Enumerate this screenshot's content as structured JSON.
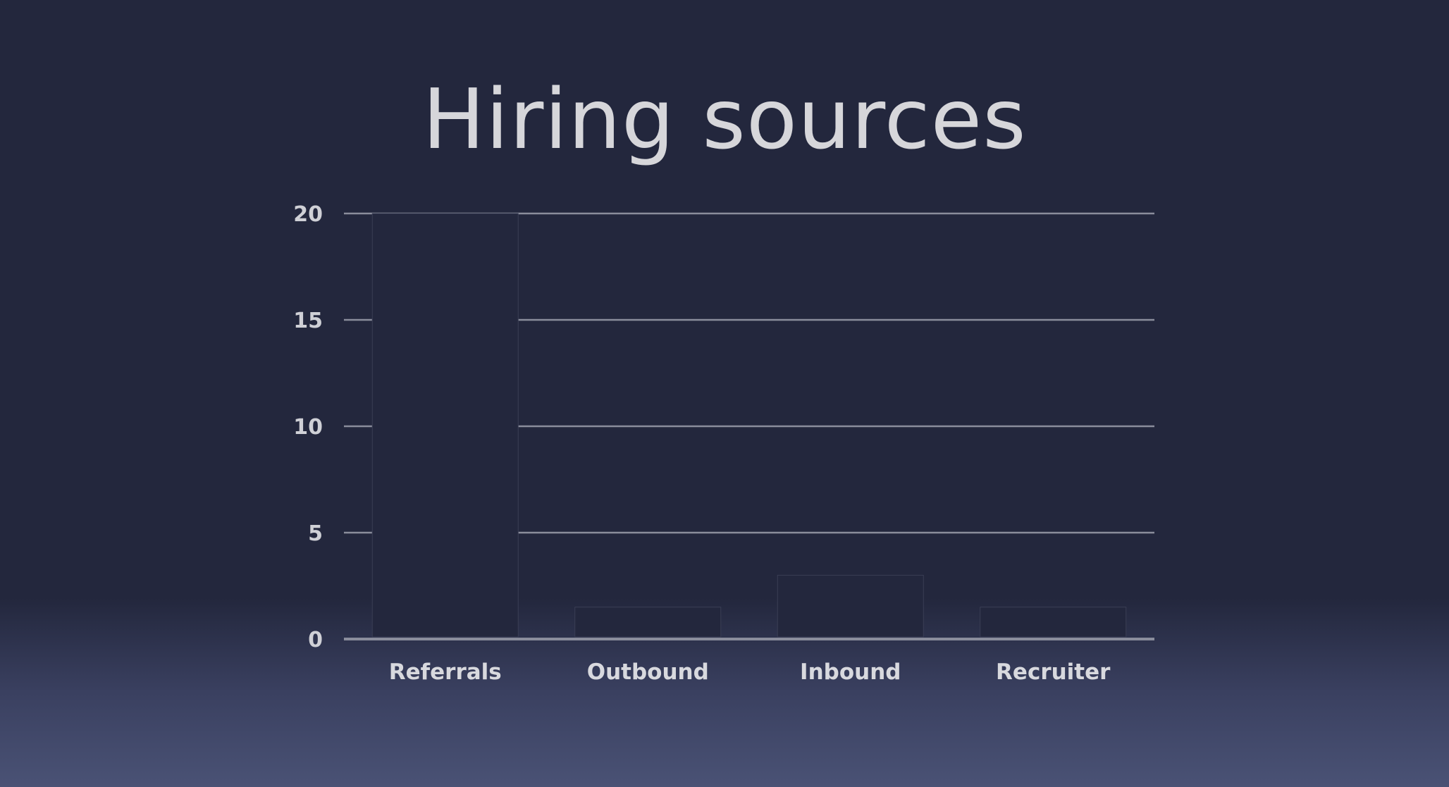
{
  "slide": {
    "title": "Hiring sources"
  },
  "chart_data": {
    "type": "bar",
    "title": "Hiring sources",
    "categories": [
      "Referrals",
      "Outbound",
      "Inbound",
      "Recruiter"
    ],
    "values": [
      20,
      1.5,
      3,
      1.5
    ],
    "ylim": [
      0,
      20
    ],
    "yticks": [
      0,
      5,
      10,
      15,
      20
    ],
    "xlabel": "",
    "ylabel": "",
    "grid": true,
    "colors": {
      "background": "#23273d",
      "bar": "#23273d",
      "grid": "#8a8d9c",
      "text": "#d6d6da"
    }
  }
}
